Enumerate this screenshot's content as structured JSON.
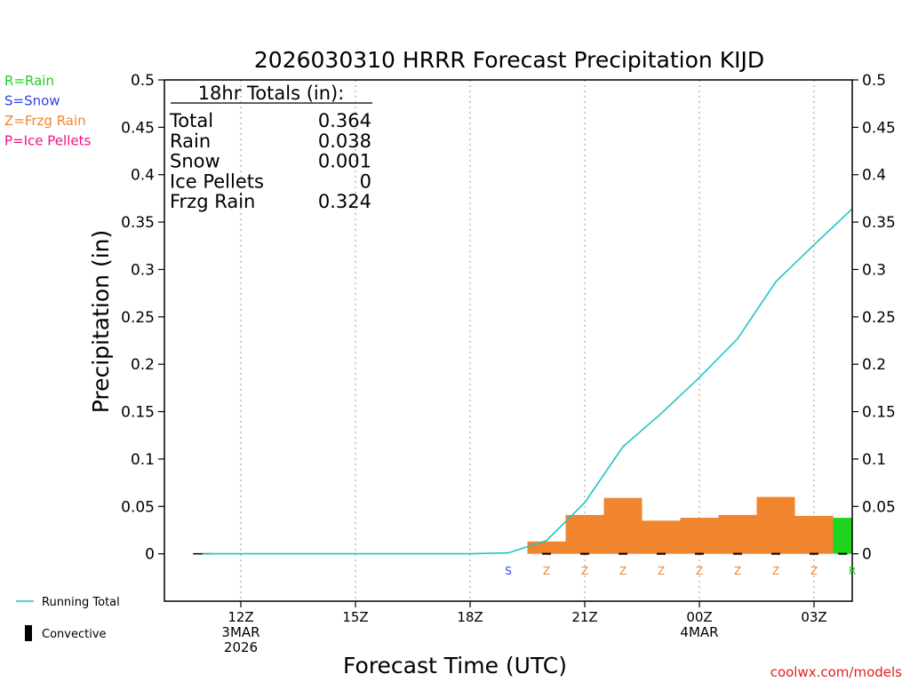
{
  "chart_data": {
    "type": "bar",
    "title": "2026030310 HRRR Forecast Precipitation KIJD",
    "xlabel": "Forecast Time (UTC)",
    "ylabel": "Precipitation (in)",
    "ylim": [
      -0.05,
      0.5
    ],
    "yticks": [
      "0.5",
      "0.45",
      "0.4",
      "0.35",
      "0.3",
      "0.25",
      "0.2",
      "0.15",
      "0.1",
      "0.05",
      "0"
    ],
    "xlim_hours_from_12Z": [
      -2,
      16
    ],
    "x_ticks": [
      {
        "hour": 0,
        "label": "12Z",
        "line2": "3MAR",
        "line3": "2026"
      },
      {
        "hour": 3,
        "label": "15Z",
        "line2": "",
        "line3": ""
      },
      {
        "hour": 6,
        "label": "18Z",
        "line2": "",
        "line3": ""
      },
      {
        "hour": 9,
        "label": "21Z",
        "line2": "",
        "line3": ""
      },
      {
        "hour": 12,
        "label": "00Z",
        "line2": "4MAR",
        "line3": ""
      },
      {
        "hour": 15,
        "label": "03Z",
        "line2": "",
        "line3": ""
      }
    ],
    "grid": "vertical dotted at x ticks",
    "bars": [
      {
        "start": 7.5,
        "end": 8.5,
        "value": 0.013,
        "type": "Z"
      },
      {
        "start": 8.5,
        "end": 9.5,
        "value": 0.041,
        "type": "Z"
      },
      {
        "start": 9.5,
        "end": 10.5,
        "value": 0.059,
        "type": "Z"
      },
      {
        "start": 10.5,
        "end": 11.5,
        "value": 0.035,
        "type": "Z"
      },
      {
        "start": 11.5,
        "end": 12.5,
        "value": 0.038,
        "type": "Z"
      },
      {
        "start": 12.5,
        "end": 13.5,
        "value": 0.041,
        "type": "Z"
      },
      {
        "start": 13.5,
        "end": 14.5,
        "value": 0.06,
        "type": "Z"
      },
      {
        "start": 14.5,
        "end": 15.5,
        "value": 0.04,
        "type": "Z"
      },
      {
        "start": 15.5,
        "end": 16.0,
        "value": 0.038,
        "type": "R"
      }
    ],
    "ptype_markers": [
      {
        "hour": 7,
        "label": "S"
      },
      {
        "hour": 8,
        "label": "Z"
      },
      {
        "hour": 9,
        "label": "Z"
      },
      {
        "hour": 10,
        "label": "Z"
      },
      {
        "hour": 11,
        "label": "Z"
      },
      {
        "hour": 12,
        "label": "Z"
      },
      {
        "hour": 13,
        "label": "Z"
      },
      {
        "hour": 14,
        "label": "Z"
      },
      {
        "hour": 15,
        "label": "Z"
      },
      {
        "hour": 16,
        "label": "R"
      }
    ],
    "series": [
      {
        "name": "Running Total",
        "x": [
          -1,
          0,
          1,
          2,
          3,
          4,
          5,
          6,
          7,
          8,
          9,
          10,
          11,
          12,
          13,
          14,
          15,
          16
        ],
        "y": [
          0,
          0,
          0,
          0,
          0,
          0,
          0,
          0,
          0.001,
          0.014,
          0.054,
          0.113,
          0.148,
          0.186,
          0.227,
          0.287,
          0.326,
          0.364
        ]
      }
    ],
    "totals_box": {
      "header": "18hr Totals (in):",
      "rows": [
        {
          "label": "Total",
          "value": "0.364"
        },
        {
          "label": "Rain",
          "value": "0.038"
        },
        {
          "label": "Snow",
          "value": "0.001"
        },
        {
          "label": "Ice Pellets",
          "value": "0"
        },
        {
          "label": "Frzg Rain",
          "value": "0.324"
        }
      ]
    },
    "ptype_legend": [
      {
        "text": "R=Rain",
        "color": "#22cc22"
      },
      {
        "text": "S=Snow",
        "color": "#3344dd"
      },
      {
        "text": "Z=Frzg Rain",
        "color": "#f0852d"
      },
      {
        "text": "P=Ice Pellets",
        "color": "#ee1188"
      }
    ],
    "legend": [
      {
        "text": "Running Total",
        "kind": "line",
        "color": "#20c4c4"
      },
      {
        "text": "Convective",
        "kind": "bar",
        "color": "#000000"
      }
    ],
    "credit": "coolwx.com/models",
    "colors": {
      "R": "#1ed41e",
      "S": "#3344dd",
      "Z": "#f0852d",
      "P": "#ee1188",
      "running_total": "#20c4c4",
      "credit": "#e02020"
    }
  }
}
